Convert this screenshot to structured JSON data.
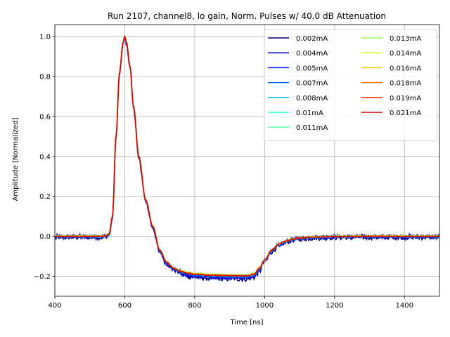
{
  "chart_data": {
    "type": "line",
    "title": "Run 2107, channel8, lo gain, Norm. Pulses w/ 40.0 dB Attenuation",
    "xlabel": "Time [ns]",
    "ylabel": "Amplitude [Normalized]",
    "xlim": [
      400,
      1500
    ],
    "ylim": [
      -0.3,
      1.06
    ],
    "xticks": [
      400,
      600,
      800,
      1000,
      1200,
      1400
    ],
    "yticks": [
      -0.2,
      0.0,
      0.2,
      0.4,
      0.6,
      0.8,
      1.0
    ],
    "xtick_labels": [
      "400",
      "600",
      "800",
      "1000",
      "1200",
      "1400"
    ],
    "ytick_labels": [
      "−0.2",
      "0.0",
      "0.2",
      "0.4",
      "0.6",
      "0.8",
      "1.0"
    ],
    "grid": true,
    "legend_position": "top-right",
    "legend_columns": 2,
    "pulse_shape": {
      "x": [
        400,
        540,
        555,
        565,
        575,
        585,
        595,
        600,
        605,
        615,
        625,
        640,
        660,
        680,
        700,
        720,
        740,
        760,
        780,
        800,
        850,
        900,
        950,
        970,
        985,
        1000,
        1020,
        1040,
        1060,
        1080,
        1100,
        1150,
        1200,
        1300,
        1400,
        1500
      ],
      "y": [
        0.0,
        0.0,
        0.01,
        0.1,
        0.5,
        0.82,
        0.97,
        1.0,
        0.97,
        0.85,
        0.65,
        0.4,
        0.18,
        0.05,
        -0.07,
        -0.13,
        -0.16,
        -0.175,
        -0.185,
        -0.19,
        -0.195,
        -0.197,
        -0.198,
        -0.19,
        -0.16,
        -0.12,
        -0.07,
        -0.04,
        -0.025,
        -0.015,
        -0.008,
        -0.003,
        -0.001,
        0.0,
        0.0,
        0.0
      ]
    },
    "series": [
      {
        "name": "0.002mA",
        "color": "#00007f",
        "noise": 0.014,
        "offset": -0.012
      },
      {
        "name": "0.004mA",
        "color": "#0000c8",
        "noise": 0.008,
        "offset": -0.008
      },
      {
        "name": "0.005mA",
        "color": "#0010ff",
        "noise": 0.006,
        "offset": -0.006
      },
      {
        "name": "0.007mA",
        "color": "#0068ff",
        "noise": 0.005,
        "offset": -0.004
      },
      {
        "name": "0.008mA",
        "color": "#00b8ff",
        "noise": 0.004,
        "offset": 0.0
      },
      {
        "name": "0.01mA",
        "color": "#26ffd0",
        "noise": 0.003,
        "offset": 0.0
      },
      {
        "name": "0.011mA",
        "color": "#5dff9a",
        "noise": 0.003,
        "offset": 0.004
      },
      {
        "name": "0.013mA",
        "color": "#a0ff56",
        "noise": 0.003,
        "offset": 0.004
      },
      {
        "name": "0.014mA",
        "color": "#d7ff1f",
        "noise": 0.003,
        "offset": 0.003
      },
      {
        "name": "0.016mA",
        "color": "#ffc400",
        "noise": 0.002,
        "offset": 0.002
      },
      {
        "name": "0.018mA",
        "color": "#ff7a00",
        "noise": 0.002,
        "offset": 0.001
      },
      {
        "name": "0.019mA",
        "color": "#ff3000",
        "noise": 0.002,
        "offset": 0.0
      },
      {
        "name": "0.021mA",
        "color": "#d40000",
        "noise": 0.002,
        "offset": 0.0
      }
    ]
  }
}
